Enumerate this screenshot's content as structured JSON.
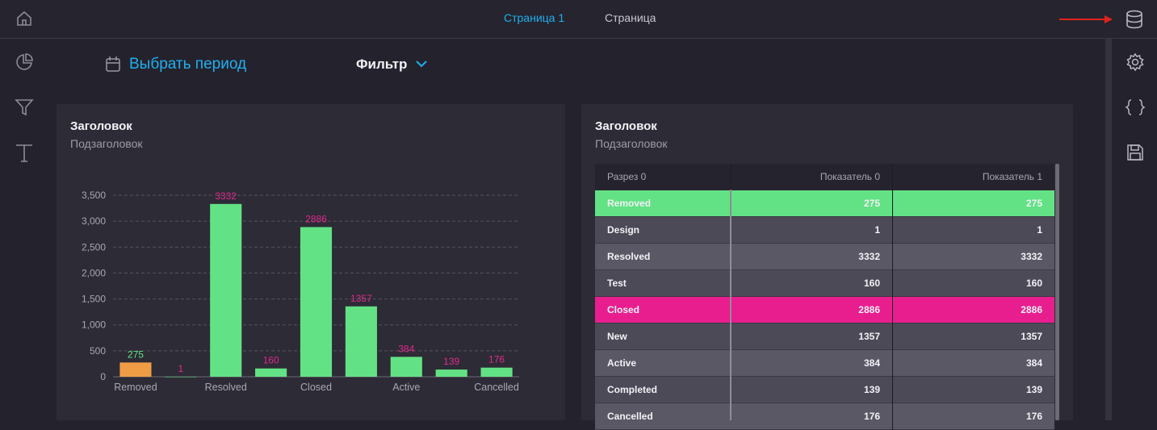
{
  "topbar": {
    "tabs": [
      {
        "label": "Страница 1",
        "active": true
      },
      {
        "label": "Страница",
        "active": false
      }
    ],
    "home_icon": "home-icon",
    "database_icon": "database-icon",
    "arrow_color": "#e0231c"
  },
  "left_sidebar": {
    "icons": [
      "pie-chart-icon",
      "filter-icon",
      "text-icon"
    ]
  },
  "right_sidebar": {
    "icons": [
      "gear-icon",
      "braces-icon",
      "save-icon"
    ]
  },
  "toolbar": {
    "period_label": "Выбрать период",
    "filter_label": "Фильтр"
  },
  "colors": {
    "accent": "#20b0f0",
    "bar_green": "#62e284",
    "bar_orange": "#ef9d45",
    "label_pink": "#e02a8c",
    "row_pink": "#e81e8e"
  },
  "chart_panel": {
    "title": "Заголовок",
    "subtitle": "Подзаголовок"
  },
  "chart_data": {
    "type": "bar",
    "categories": [
      "Removed",
      "Design",
      "Resolved",
      "Test",
      "Closed",
      "New",
      "Active",
      "Completed",
      "Cancelled"
    ],
    "values": [
      275,
      1,
      3332,
      160,
      2886,
      1357,
      384,
      139,
      176
    ],
    "visible_x_labels": [
      "Removed",
      "Resolved",
      "Closed",
      "Active",
      "Cancelled"
    ],
    "y_ticks": [
      "0",
      "500",
      "1,000",
      "1,500",
      "2,000",
      "2,500",
      "3,000",
      "3,500"
    ],
    "ylim": [
      0,
      3500
    ],
    "highlighted_category": "Removed",
    "grid": true
  },
  "table_panel": {
    "title": "Заголовок",
    "subtitle": "Подзаголовок",
    "columns": [
      "Разрез 0",
      "Показатель 0",
      "Показатель 1"
    ],
    "rows": [
      {
        "label": "Removed",
        "v0": "275",
        "v1": "275",
        "highlight": "green"
      },
      {
        "label": "Design",
        "v0": "1",
        "v1": "1",
        "highlight": ""
      },
      {
        "label": "Resolved",
        "v0": "3332",
        "v1": "3332",
        "highlight": ""
      },
      {
        "label": "Test",
        "v0": "160",
        "v1": "160",
        "highlight": ""
      },
      {
        "label": "Closed",
        "v0": "2886",
        "v1": "2886",
        "highlight": "pink"
      },
      {
        "label": "New",
        "v0": "1357",
        "v1": "1357",
        "highlight": ""
      },
      {
        "label": "Active",
        "v0": "384",
        "v1": "384",
        "highlight": ""
      },
      {
        "label": "Completed",
        "v0": "139",
        "v1": "139",
        "highlight": ""
      },
      {
        "label": "Cancelled",
        "v0": "176",
        "v1": "176",
        "highlight": ""
      }
    ]
  }
}
